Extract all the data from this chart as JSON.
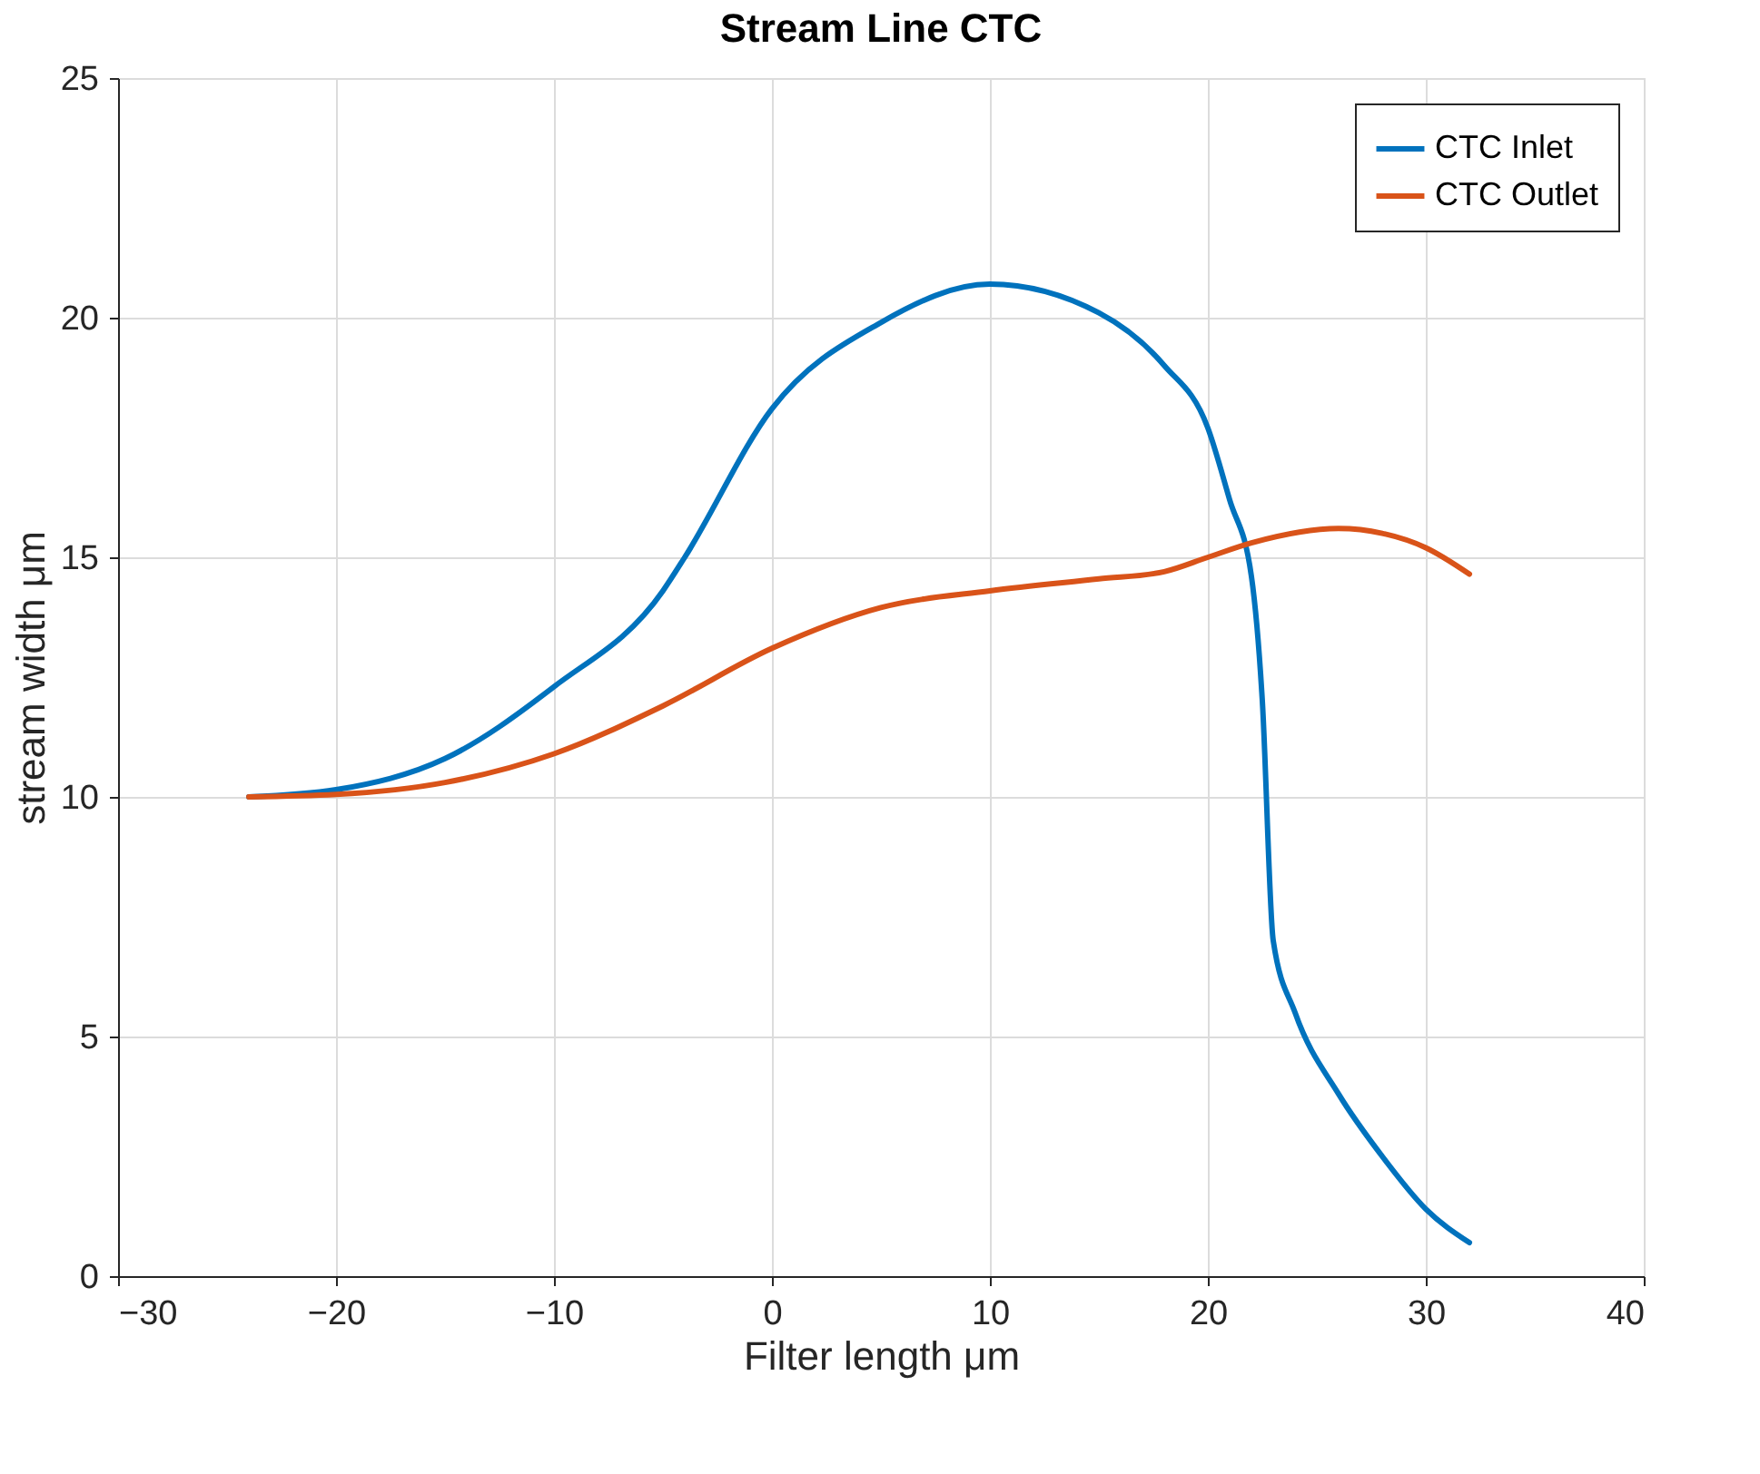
{
  "chart_data": {
    "type": "line",
    "title": "Stream Line CTC",
    "xlabel": "Filter length μm",
    "ylabel": "stream width μm",
    "xlim": [
      -30,
      40
    ],
    "xticks": [
      -30,
      -20,
      -10,
      0,
      10,
      20,
      30,
      40
    ],
    "ylim": [
      0,
      25
    ],
    "yticks": [
      0,
      5,
      10,
      15,
      20,
      25
    ],
    "grid": true,
    "legend": "top right",
    "line_style": "solid",
    "marker": "none",
    "series": [
      {
        "name": "CTC Inlet",
        "color": "#0072bd",
        "x": [
          -24,
          -20,
          -15,
          -10,
          -5,
          -4,
          0,
          5,
          10,
          15,
          18,
          20,
          21,
          22,
          22.5,
          23,
          24,
          26,
          28,
          30,
          32
        ],
        "values": [
          10,
          10.15,
          10.8,
          12.3,
          14.3,
          15,
          18.1,
          19.9,
          20.7,
          20.1,
          19,
          17.7,
          16.2,
          14.6,
          12,
          7,
          5.5,
          3.8,
          2.5,
          1.4,
          0.7
        ]
      },
      {
        "name": "CTC Outlet",
        "color": "#d95319",
        "x": [
          -24,
          -20,
          -15,
          -10,
          -5,
          0,
          5,
          10,
          15,
          18,
          20,
          22,
          26,
          28,
          30,
          32
        ],
        "values": [
          10,
          10.05,
          10.3,
          10.9,
          11.9,
          13.1,
          13.95,
          14.3,
          14.55,
          14.7,
          15,
          15.3,
          15.6,
          15.5,
          15.2,
          14.65
        ]
      }
    ]
  }
}
